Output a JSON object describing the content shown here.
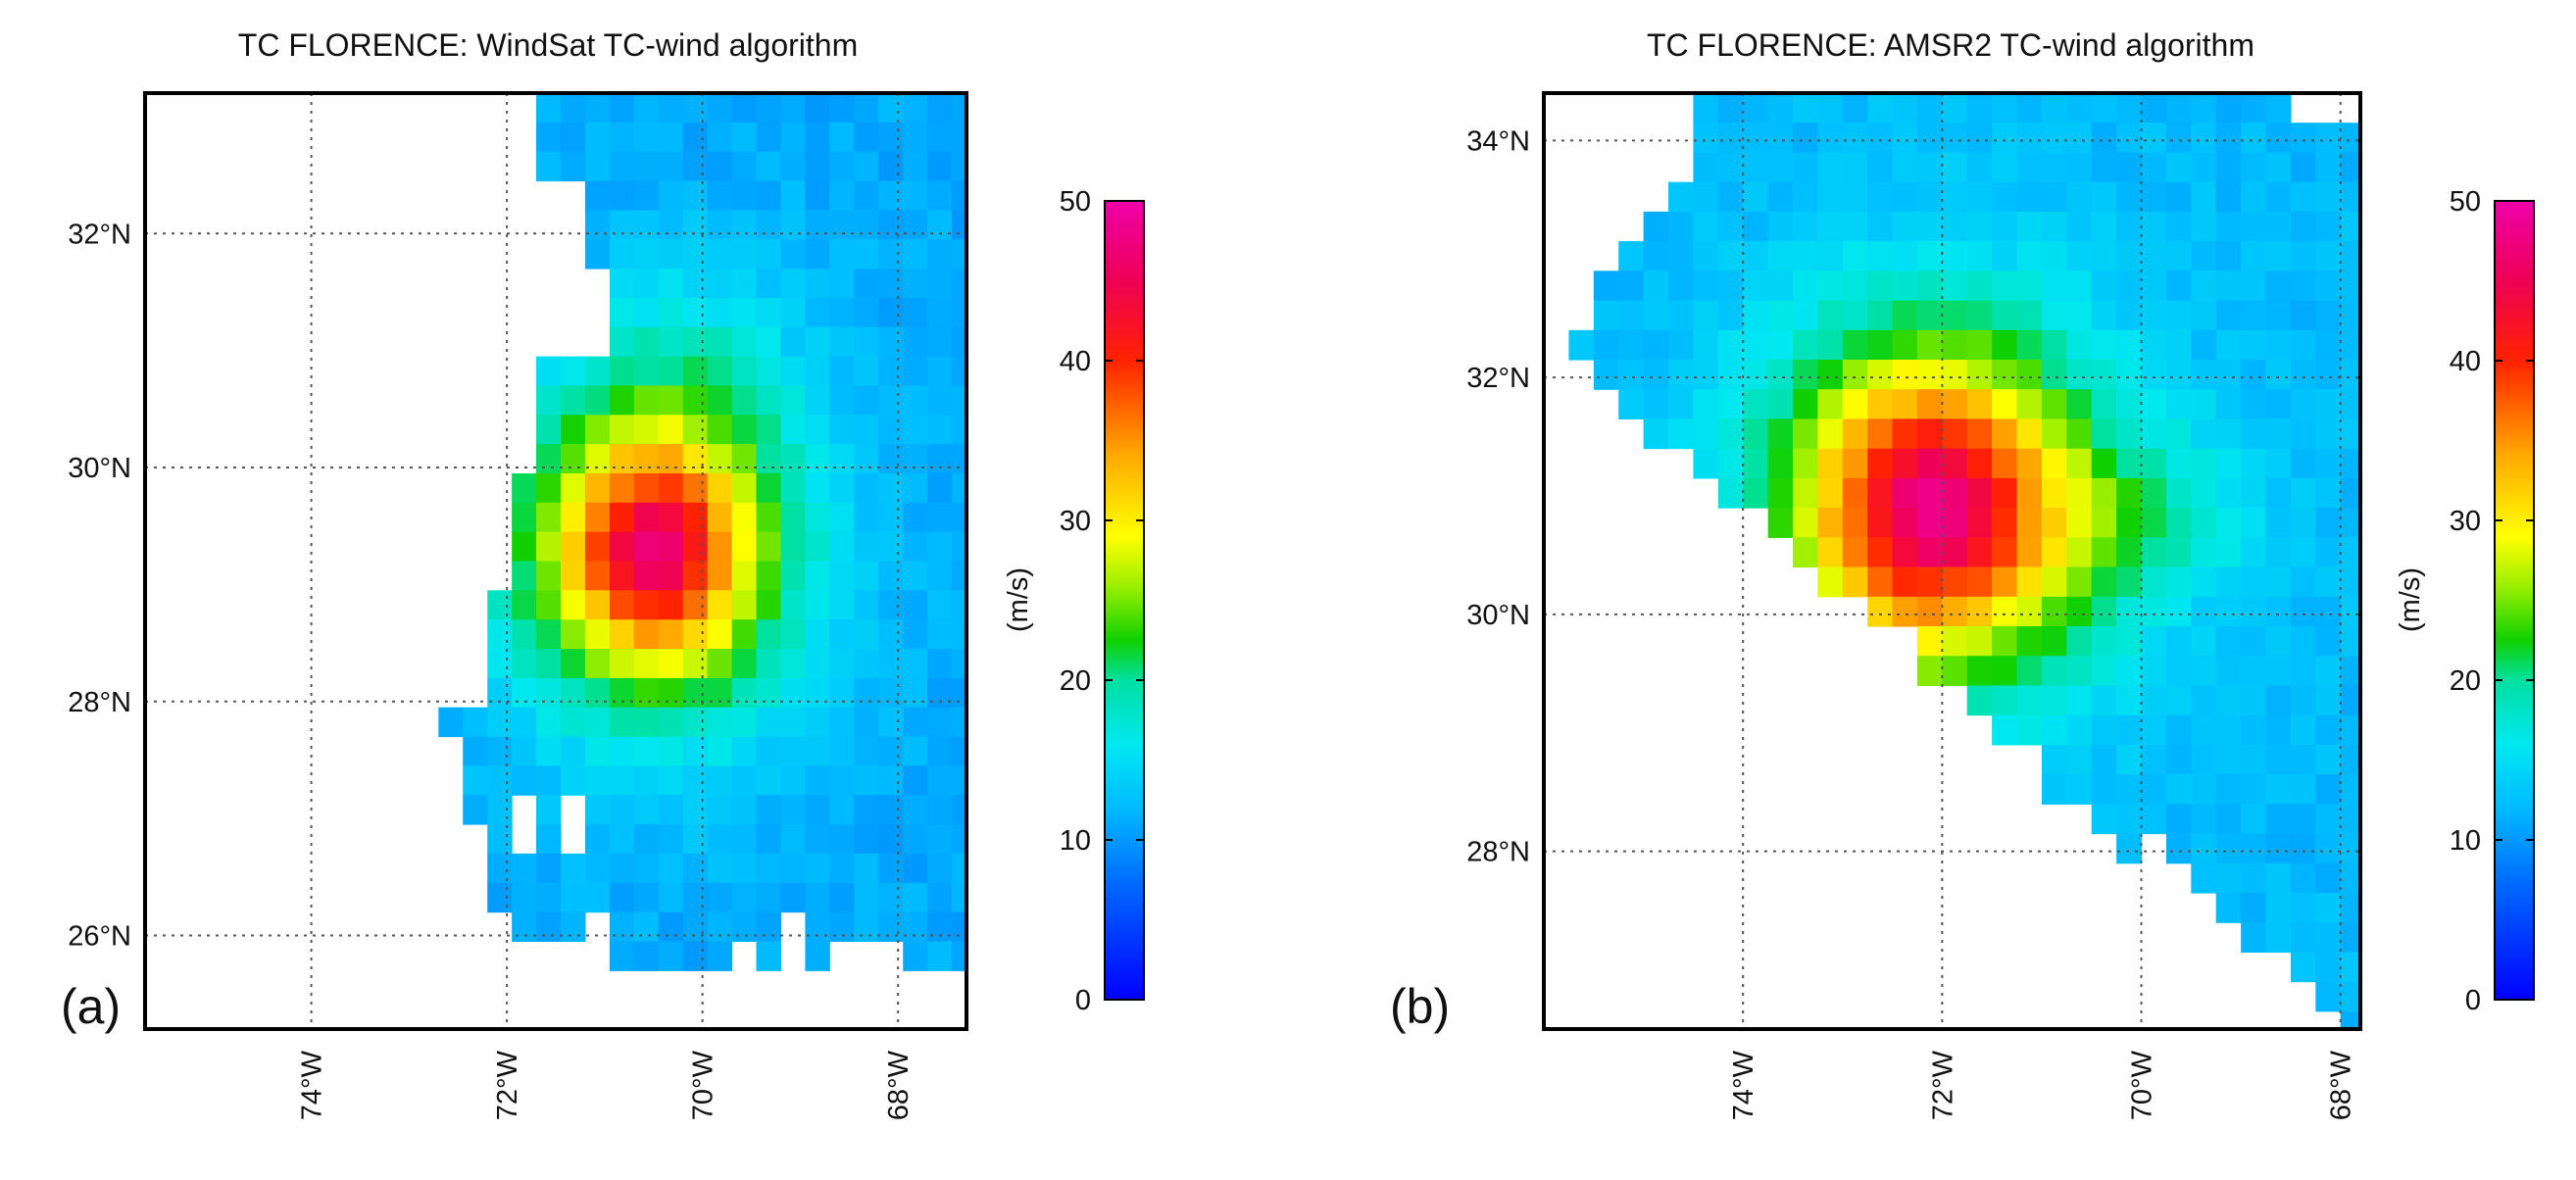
{
  "figure": {
    "panels": [
      {
        "id": "a",
        "label": "(a)",
        "title": "TC FLORENCE: WindSat TC-wind algorithm",
        "colorbar": {
          "label": "(m/s)",
          "ticks": [
            "0",
            "10",
            "20",
            "30",
            "40",
            "50"
          ]
        }
      },
      {
        "id": "b",
        "label": "(b)",
        "title": "TC FLORENCE: AMSR2 TC-wind algorithm",
        "colorbar": {
          "label": "(m/s)",
          "ticks": [
            "0",
            "10",
            "20",
            "30",
            "40",
            "50"
          ]
        }
      }
    ]
  },
  "chart_data": [
    {
      "type": "heatmap",
      "title": "TC FLORENCE: WindSat TC-wind algorithm",
      "panel_label": "(a)",
      "x_unit": "°W",
      "y_unit": "°N",
      "xlim": [
        75.7,
        67.3
      ],
      "ylim": [
        25.2,
        33.2
      ],
      "xticks": [
        74,
        72,
        70,
        68
      ],
      "xticklabels": [
        "74°W",
        "72°W",
        "70°W",
        "68°W"
      ],
      "yticks": [
        26,
        28,
        30,
        32
      ],
      "yticklabels": [
        "26°N",
        "28°N",
        "30°N",
        "32°N"
      ],
      "grid": true,
      "colorbar": {
        "label": "(m/s)",
        "min": 0,
        "max": 50,
        "ticks": [
          0,
          10,
          20,
          30,
          40,
          50
        ]
      },
      "grid_resolution_deg": 0.25,
      "center": {
        "lon": 70.5,
        "lat": 29.3
      },
      "peak_wind_ms": 47,
      "valid_region": {
        "west_edge_lon_north": 71.6,
        "west_edge_lon_south": 72.7,
        "north_lat": 33.2,
        "south_lat": 25.6
      }
    },
    {
      "type": "heatmap",
      "title": "TC FLORENCE: AMSR2 TC-wind algorithm",
      "panel_label": "(b)",
      "x_unit": "°W",
      "y_unit": "°N",
      "xlim": [
        76.0,
        67.8
      ],
      "ylim": [
        26.5,
        34.4
      ],
      "xticks": [
        74,
        72,
        70,
        68
      ],
      "xticklabels": [
        "74°W",
        "72°W",
        "70°W",
        "68°W"
      ],
      "yticks": [
        28,
        30,
        32,
        34
      ],
      "yticklabels": [
        "28°N",
        "30°N",
        "32°N",
        "34°N"
      ],
      "grid": true,
      "colorbar": {
        "label": "(m/s)",
        "min": 0,
        "max": 50,
        "ticks": [
          0,
          10,
          20,
          30,
          40,
          50
        ]
      },
      "grid_resolution_deg": 0.25,
      "center": {
        "lon": 72.1,
        "lat": 30.9
      },
      "peak_wind_ms": 48,
      "valid_region": {
        "swath_edge": "southwest diagonal",
        "north_lat": 34.4,
        "south_lat": 26.5
      }
    }
  ]
}
